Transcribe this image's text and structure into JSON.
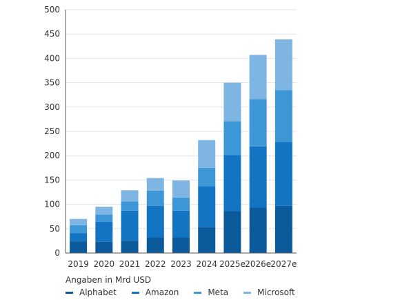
{
  "chart_data": {
    "type": "bar",
    "stacked": true,
    "categories": [
      "2019",
      "2020",
      "2021",
      "2022",
      "2023",
      "2024",
      "2025e",
      "2026e",
      "2027e"
    ],
    "ylim": [
      0,
      500
    ],
    "yticks": [
      0,
      50,
      100,
      150,
      200,
      250,
      300,
      350,
      400,
      450,
      500
    ],
    "grid": true,
    "legend_position": "bottom-left",
    "series": [
      {
        "name": "Alphabet",
        "color": "#0a5a9c",
        "values": [
          24,
          23,
          25,
          32,
          32,
          53,
          86,
          93,
          97
        ]
      },
      {
        "name": "Amazon",
        "color": "#1474c4",
        "values": [
          17,
          41,
          62,
          65,
          55,
          84,
          115,
          126,
          131
        ]
      },
      {
        "name": "Meta",
        "color": "#3d97d6",
        "values": [
          16,
          15,
          19,
          31,
          27,
          38,
          70,
          97,
          107
        ]
      },
      {
        "name": "Microsoft",
        "color": "#7eb5e3",
        "values": [
          13,
          16,
          23,
          26,
          35,
          57,
          79,
          91,
          104
        ]
      }
    ]
  },
  "caption": "Angaben in Mrd USD"
}
